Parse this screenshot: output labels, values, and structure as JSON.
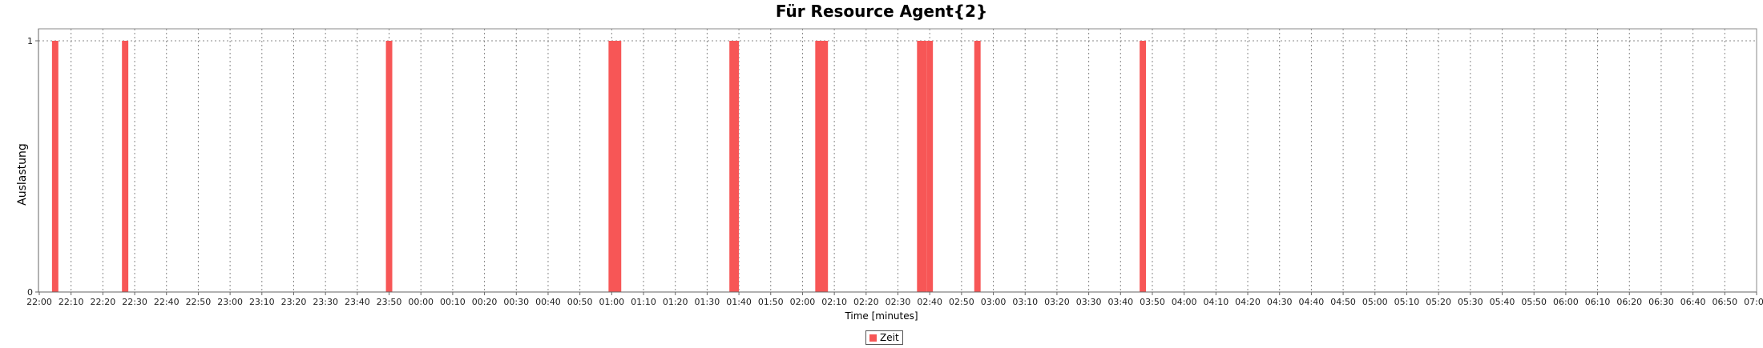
{
  "chart_data": {
    "type": "bar",
    "title": "Für Resource Agent{2}",
    "xlabel": "Time [minutes]",
    "ylabel": "Auslastung",
    "xlim": [
      "22:00",
      "07:00"
    ],
    "ylim": [
      0,
      1
    ],
    "y_ticks": [
      "0",
      "1"
    ],
    "x_ticks": [
      "22:00",
      "22:10",
      "22:20",
      "22:30",
      "22:40",
      "22:50",
      "23:00",
      "23:10",
      "23:20",
      "23:30",
      "23:40",
      "23:50",
      "00:00",
      "00:10",
      "00:20",
      "00:30",
      "00:40",
      "00:50",
      "01:00",
      "01:10",
      "01:20",
      "01:30",
      "01:40",
      "01:50",
      "02:00",
      "02:10",
      "02:20",
      "02:30",
      "02:40",
      "02:50",
      "03:00",
      "03:10",
      "03:20",
      "03:30",
      "03:40",
      "03:50",
      "04:00",
      "04:10",
      "04:20",
      "04:30",
      "04:40",
      "04:50",
      "05:00",
      "05:10",
      "05:20",
      "05:30",
      "05:40",
      "05:50",
      "06:00",
      "06:10",
      "06:20",
      "06:30",
      "06:40",
      "06:50",
      "07:00"
    ],
    "grid": true,
    "legend_placement": "bottom-center",
    "series": [
      {
        "name": "Zeit",
        "color": "#f75656",
        "bars": [
          {
            "start": "22:04",
            "end": "22:06",
            "value": 1
          },
          {
            "start": "22:26",
            "end": "22:28",
            "value": 1
          },
          {
            "start": "23:49",
            "end": "23:51",
            "value": 1
          },
          {
            "start": "00:59",
            "end": "01:03",
            "value": 1
          },
          {
            "start": "01:37",
            "end": "01:40",
            "value": 1
          },
          {
            "start": "02:04",
            "end": "02:08",
            "value": 1
          },
          {
            "start": "02:36",
            "end": "02:39",
            "value": 1
          },
          {
            "start": "02:39",
            "end": "02:41",
            "value": 1
          },
          {
            "start": "02:54",
            "end": "02:56",
            "value": 1
          },
          {
            "start": "03:46",
            "end": "03:48",
            "value": 1
          }
        ]
      }
    ]
  }
}
